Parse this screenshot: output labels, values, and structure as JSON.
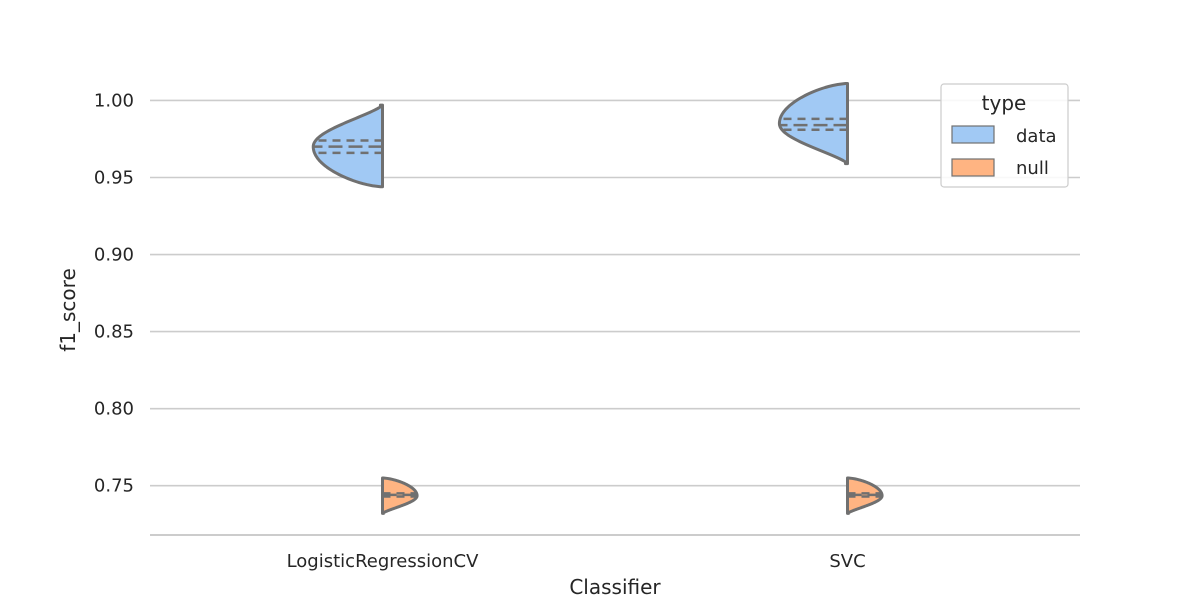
{
  "chart_data": {
    "type": "violin",
    "xlabel": "Classifier",
    "ylabel": "f1_score",
    "ylim": [
      0.718,
      1.023
    ],
    "yticks": [
      "0.75",
      "0.80",
      "0.85",
      "0.90",
      "0.95",
      "1.00"
    ],
    "categories": [
      "LogisticRegressionCV",
      "SVC"
    ],
    "grid": "horizontal",
    "legend": {
      "title": "type",
      "placement": "top-right",
      "entries": [
        {
          "label": "data",
          "color": "#a1c9f4"
        },
        {
          "label": "null",
          "color": "#ffb482"
        }
      ]
    },
    "series": [
      {
        "name": "data",
        "side": "left",
        "color": "#a1c9f4",
        "distributions": [
          {
            "category": "LogisticRegressionCV",
            "min": 0.944,
            "max": 0.997,
            "q1": 0.966,
            "median": 0.97,
            "q3": 0.974,
            "mode": 0.97
          },
          {
            "category": "SVC",
            "min": 0.959,
            "max": 1.011,
            "q1": 0.981,
            "median": 0.984,
            "q3": 0.988,
            "mode": 0.985
          }
        ]
      },
      {
        "name": "null",
        "side": "right",
        "color": "#ffb482",
        "distributions": [
          {
            "category": "LogisticRegressionCV",
            "min": 0.732,
            "max": 0.755,
            "q1": 0.743,
            "median": 0.744,
            "q3": 0.745,
            "mode": 0.7435
          },
          {
            "category": "SVC",
            "min": 0.732,
            "max": 0.755,
            "q1": 0.743,
            "median": 0.744,
            "q3": 0.745,
            "mode": 0.7435
          }
        ]
      }
    ]
  }
}
